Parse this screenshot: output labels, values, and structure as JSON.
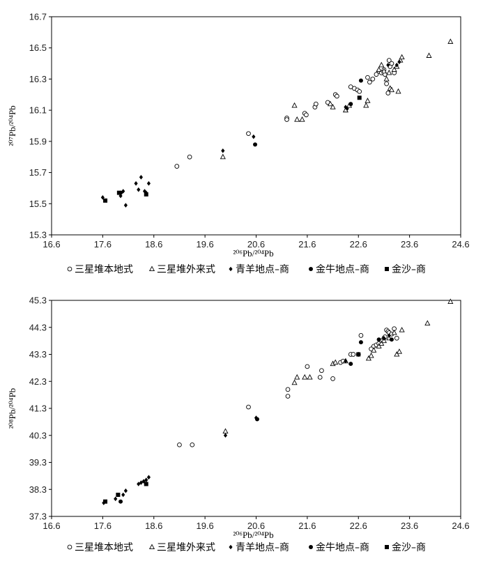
{
  "legend": [
    {
      "key": "sxd_local",
      "marker": "circle-open",
      "label": "三星堆本地式"
    },
    {
      "key": "sxd_foreign",
      "marker": "triangle-open",
      "label": "三星堆外来式"
    },
    {
      "key": "qingyang",
      "marker": "diamond",
      "label": "青羊地点–商"
    },
    {
      "key": "jinniu",
      "marker": "circle-filled",
      "label": "金牛地点–商"
    },
    {
      "key": "jinsha",
      "marker": "square",
      "label": "金沙–商"
    }
  ],
  "chart_data": [
    {
      "type": "scatter",
      "xlabel": "²⁰⁶Pb/²⁰⁴Pb",
      "ylabel": "²⁰⁷Pb/²⁰⁴Pb",
      "xlim": [
        16.6,
        24.6
      ],
      "ylim": [
        15.3,
        16.7
      ],
      "xticks": [
        "16.6",
        "17.6",
        "18.6",
        "19.6",
        "20.6",
        "21.6",
        "22.6",
        "23.6",
        "24.6"
      ],
      "yticks": [
        "15.3",
        "15.5",
        "15.7",
        "15.9",
        "16.1",
        "16.3",
        "16.5",
        "16.7"
      ],
      "series": [
        {
          "key": "sxd_local",
          "points": [
            [
              19.05,
              15.74
            ],
            [
              19.3,
              15.8
            ],
            [
              20.45,
              15.95
            ],
            [
              21.2,
              16.05
            ],
            [
              21.2,
              16.04
            ],
            [
              21.55,
              16.08
            ],
            [
              21.58,
              16.07
            ],
            [
              21.75,
              16.12
            ],
            [
              21.77,
              16.14
            ],
            [
              22.0,
              16.15
            ],
            [
              22.15,
              16.2
            ],
            [
              22.18,
              16.19
            ],
            [
              22.45,
              16.25
            ],
            [
              22.52,
              16.24
            ],
            [
              22.58,
              16.23
            ],
            [
              22.62,
              16.22
            ],
            [
              22.78,
              16.31
            ],
            [
              22.82,
              16.28
            ],
            [
              22.88,
              16.3
            ],
            [
              22.95,
              16.33
            ],
            [
              23.0,
              16.35
            ],
            [
              23.05,
              16.34
            ],
            [
              23.1,
              16.36
            ],
            [
              23.12,
              16.33
            ],
            [
              23.15,
              16.27
            ],
            [
              23.18,
              16.21
            ],
            [
              23.2,
              16.42
            ],
            [
              23.22,
              16.38
            ],
            [
              23.25,
              16.4
            ],
            [
              23.3,
              16.34
            ]
          ]
        },
        {
          "key": "sxd_foreign",
          "points": [
            [
              19.95,
              15.8
            ],
            [
              21.35,
              16.13
            ],
            [
              21.4,
              16.04
            ],
            [
              21.5,
              16.04
            ],
            [
              22.05,
              16.14
            ],
            [
              22.1,
              16.12
            ],
            [
              22.35,
              16.1
            ],
            [
              22.42,
              16.13
            ],
            [
              22.75,
              16.13
            ],
            [
              22.78,
              16.16
            ],
            [
              23.0,
              16.36
            ],
            [
              23.05,
              16.39
            ],
            [
              23.1,
              16.35
            ],
            [
              23.15,
              16.3
            ],
            [
              23.2,
              16.34
            ],
            [
              23.22,
              16.24
            ],
            [
              23.25,
              16.23
            ],
            [
              23.3,
              16.36
            ],
            [
              23.35,
              16.38
            ],
            [
              23.38,
              16.22
            ],
            [
              23.42,
              16.42
            ],
            [
              23.45,
              16.44
            ],
            [
              23.98,
              16.45
            ],
            [
              24.4,
              16.54
            ]
          ]
        },
        {
          "key": "qingyang",
          "points": [
            [
              17.6,
              15.54
            ],
            [
              17.95,
              15.55
            ],
            [
              18.0,
              15.58
            ],
            [
              18.05,
              15.49
            ],
            [
              18.25,
              15.63
            ],
            [
              18.3,
              15.59
            ],
            [
              18.35,
              15.67
            ],
            [
              18.42,
              15.58
            ],
            [
              18.45,
              15.57
            ],
            [
              18.5,
              15.63
            ],
            [
              19.95,
              15.84
            ],
            [
              20.55,
              15.93
            ],
            [
              22.35,
              16.12
            ],
            [
              22.38,
              16.11
            ],
            [
              23.18,
              16.39
            ],
            [
              23.35,
              16.39
            ],
            [
              23.4,
              16.41
            ]
          ]
        },
        {
          "key": "jinniu",
          "points": [
            [
              17.95,
              15.57
            ],
            [
              20.58,
              15.88
            ],
            [
              22.45,
              16.14
            ],
            [
              22.65,
              16.29
            ]
          ]
        },
        {
          "key": "jinsha",
          "points": [
            [
              17.65,
              15.52
            ],
            [
              17.92,
              15.57
            ],
            [
              18.45,
              15.56
            ],
            [
              22.62,
              16.18
            ]
          ]
        }
      ]
    },
    {
      "type": "scatter",
      "xlabel": "²⁰⁶Pb/²⁰⁴Pb",
      "ylabel": "²⁰⁸Pb/²⁰⁴Pb",
      "xlim": [
        16.6,
        24.6
      ],
      "ylim": [
        37.3,
        45.3
      ],
      "xticks": [
        "16.6",
        "17.6",
        "18.6",
        "19.6",
        "20.6",
        "21.6",
        "22.6",
        "23.6",
        "24.6"
      ],
      "yticks": [
        "37.3",
        "38.3",
        "39.3",
        "40.3",
        "41.3",
        "42.3",
        "43.3",
        "44.3",
        "45.3"
      ],
      "series": [
        {
          "key": "sxd_local",
          "points": [
            [
              19.1,
              39.95
            ],
            [
              19.35,
              39.95
            ],
            [
              20.45,
              41.35
            ],
            [
              21.22,
              41.75
            ],
            [
              21.22,
              42.0
            ],
            [
              21.6,
              42.85
            ],
            [
              21.85,
              42.45
            ],
            [
              21.88,
              42.7
            ],
            [
              22.1,
              42.4
            ],
            [
              22.25,
              43.0
            ],
            [
              22.3,
              43.05
            ],
            [
              22.45,
              43.3
            ],
            [
              22.5,
              43.3
            ],
            [
              22.6,
              43.3
            ],
            [
              22.65,
              44.0
            ],
            [
              22.85,
              43.5
            ],
            [
              22.9,
              43.6
            ],
            [
              22.95,
              43.65
            ],
            [
              23.0,
              43.7
            ],
            [
              23.05,
              43.8
            ],
            [
              23.1,
              43.9
            ],
            [
              23.12,
              43.95
            ],
            [
              23.15,
              44.2
            ],
            [
              23.18,
              44.15
            ],
            [
              23.2,
              44.1
            ],
            [
              23.25,
              44.05
            ],
            [
              23.3,
              44.25
            ],
            [
              23.35,
              43.9
            ]
          ]
        },
        {
          "key": "sxd_foreign",
          "points": [
            [
              20.0,
              40.45
            ],
            [
              21.35,
              42.25
            ],
            [
              21.4,
              42.45
            ],
            [
              21.55,
              42.45
            ],
            [
              21.65,
              42.45
            ],
            [
              22.1,
              42.95
            ],
            [
              22.15,
              43.0
            ],
            [
              22.35,
              43.05
            ],
            [
              22.8,
              43.15
            ],
            [
              22.85,
              43.25
            ],
            [
              22.9,
              43.45
            ],
            [
              23.0,
              43.6
            ],
            [
              23.05,
              43.7
            ],
            [
              23.1,
              43.8
            ],
            [
              23.2,
              43.9
            ],
            [
              23.3,
              44.1
            ],
            [
              23.35,
              43.3
            ],
            [
              23.4,
              43.4
            ],
            [
              23.45,
              44.2
            ],
            [
              23.95,
              44.45
            ],
            [
              24.4,
              45.25
            ]
          ]
        },
        {
          "key": "qingyang",
          "points": [
            [
              17.62,
              37.8
            ],
            [
              17.85,
              37.95
            ],
            [
              18.0,
              38.1
            ],
            [
              18.05,
              38.25
            ],
            [
              18.3,
              38.5
            ],
            [
              18.35,
              38.55
            ],
            [
              18.4,
              38.6
            ],
            [
              18.45,
              38.65
            ],
            [
              18.5,
              38.75
            ],
            [
              20.0,
              40.3
            ],
            [
              20.6,
              40.95
            ],
            [
              22.35,
              43.05
            ],
            [
              23.1,
              43.9
            ],
            [
              23.2,
              44.0
            ]
          ]
        },
        {
          "key": "jinniu",
          "points": [
            [
              17.95,
              37.85
            ],
            [
              20.62,
              40.9
            ],
            [
              22.45,
              42.95
            ],
            [
              22.65,
              43.75
            ],
            [
              23.0,
              43.85
            ],
            [
              23.25,
              43.85
            ]
          ]
        },
        {
          "key": "jinsha",
          "points": [
            [
              17.65,
              37.85
            ],
            [
              17.9,
              38.1
            ],
            [
              18.45,
              38.5
            ],
            [
              22.6,
              43.3
            ]
          ]
        }
      ]
    }
  ]
}
